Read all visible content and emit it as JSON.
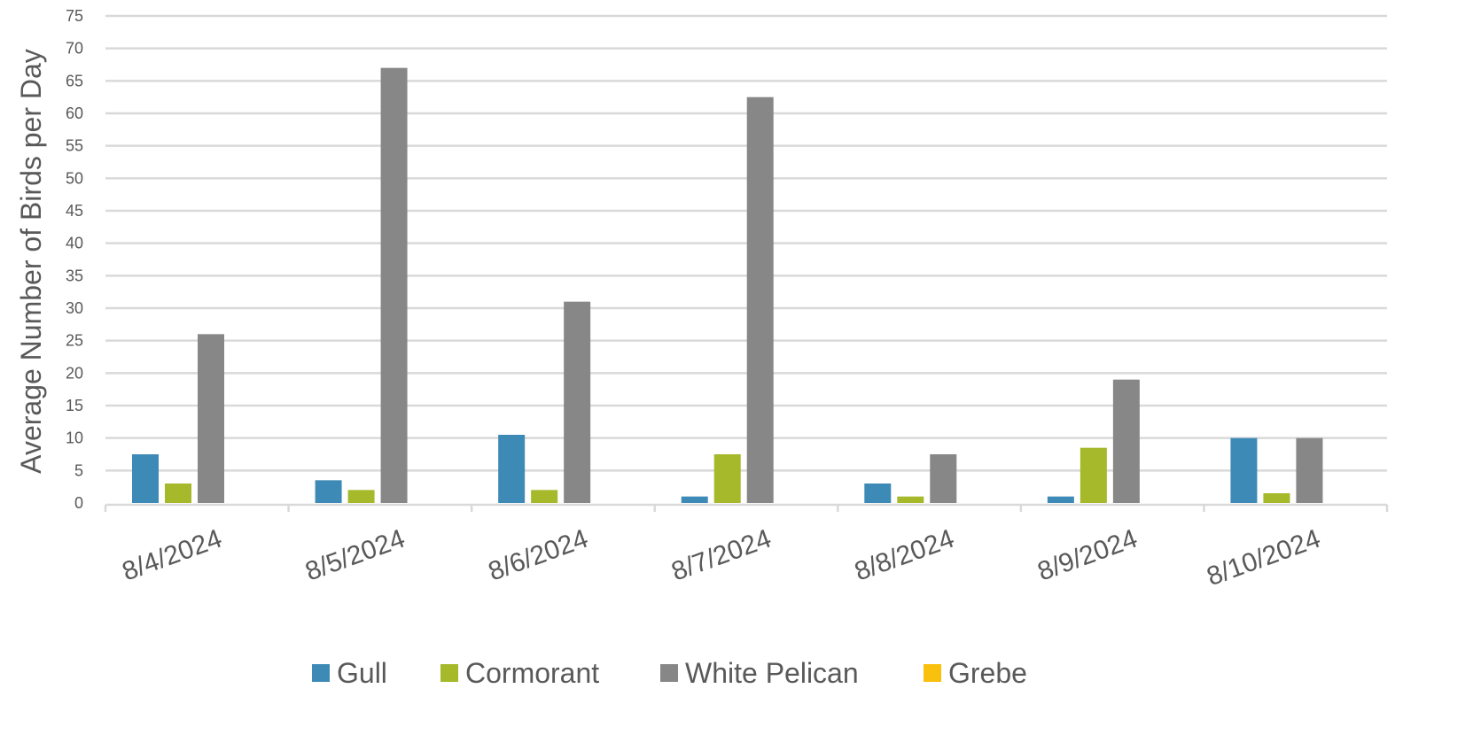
{
  "chart_data": {
    "type": "bar",
    "title": "",
    "xlabel": "",
    "ylabel": "Average Number of Birds per Day",
    "ylim": [
      0,
      75
    ],
    "ytick_step": 5,
    "grid": true,
    "legend_position": "bottom",
    "categories": [
      "8/4/2024",
      "8/5/2024",
      "8/6/2024",
      "8/7/2024",
      "8/8/2024",
      "8/9/2024",
      "8/10/2024"
    ],
    "series": [
      {
        "name": "Gull",
        "color": "#3e8ab6",
        "values": [
          7.5,
          3.5,
          10.5,
          1,
          3,
          1,
          10
        ]
      },
      {
        "name": "Cormorant",
        "color": "#a5b92b",
        "values": [
          3,
          2,
          2,
          7.5,
          1,
          8.5,
          1.5
        ]
      },
      {
        "name": "White Pelican",
        "color": "#878787",
        "values": [
          26,
          67,
          31,
          62.5,
          7.5,
          19,
          10
        ]
      },
      {
        "name": "Grebe",
        "color": "#f9c00e",
        "values": [
          0,
          0,
          0,
          0,
          0,
          0,
          0
        ]
      }
    ]
  }
}
